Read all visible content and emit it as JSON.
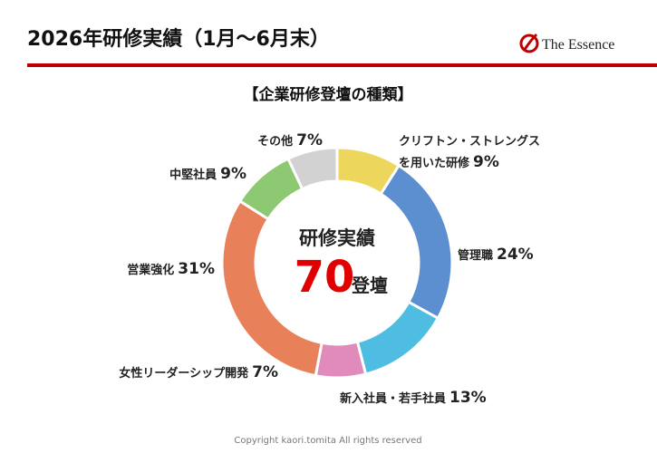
{
  "header": {
    "title": "2026年研修実績（1月～6月末）",
    "logo": "The Essence"
  },
  "chart_data": {
    "type": "donut",
    "title": "【企業研修登壇の種類】",
    "center_label": "研修実績",
    "center_value": 70,
    "center_unit": "登壇",
    "categories": [
      "クリフトン・ストレングス\nを用いた研修",
      "管理職",
      "新入社員・若手社員",
      "女性リーダーシップ開発",
      "営業強化",
      "中堅社員",
      "その他"
    ],
    "values": [
      9,
      24,
      13,
      7,
      31,
      9,
      7
    ],
    "value_labels": [
      "9%",
      "24%",
      "13%",
      "7%",
      "31%",
      "9%",
      "7%"
    ],
    "colors": [
      "#ecd75c",
      "#5b8fd0",
      "#4fbde2",
      "#e08bbb",
      "#e8805a",
      "#8dc872",
      "#d2d2d2"
    ]
  },
  "footer": "Copyright kaori.tomita All rights reserved"
}
